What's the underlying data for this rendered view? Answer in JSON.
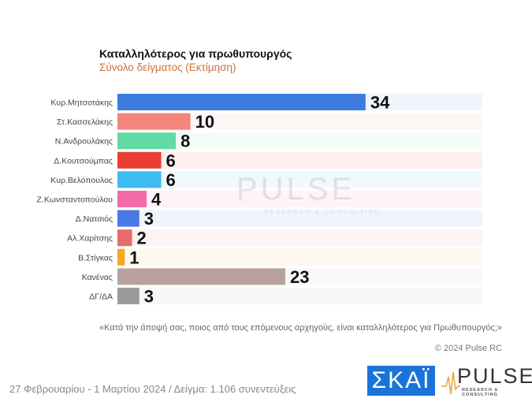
{
  "header": {
    "title": "Καταλληλότερος για πρωθυπουργός",
    "subtitle": "Σύνολο δείγματος   (Εκτίμηση)"
  },
  "chart_data": {
    "type": "bar",
    "orientation": "horizontal",
    "title": "Καταλληλότερος για πρωθυπουργός",
    "subtitle": "Σύνολο δείγματος   (Εκτίμηση)",
    "categories": [
      "Κυρ.Μητσοτάκης",
      "Στ.Κασσελάκης",
      "Ν.Ανδρουλάκης",
      "Δ.Κουτσούμπας",
      "Κυρ.Βελόπουλος",
      "Ζ.Κωνσταντοπούλου",
      "Δ.Νατσιός",
      "Αλ.Χαρίτσης",
      "Β.Στίγκας",
      "Κανένας",
      "ΔΓ/ΔΑ"
    ],
    "values": [
      34,
      10,
      8,
      6,
      6,
      4,
      3,
      2,
      1,
      23,
      3
    ],
    "colors": [
      "#3d7be0",
      "#f4857a",
      "#62dba3",
      "#ea3e35",
      "#3fbcef",
      "#f36ba6",
      "#4a78e6",
      "#e86c6c",
      "#f6a623",
      "#b9a29d",
      "#9a9a9a"
    ],
    "xlim": [
      0,
      50
    ],
    "grid": false,
    "data_labels": true
  },
  "watermark": {
    "text": "PULSE",
    "sub": "RESEARCH & CONSULTING"
  },
  "question": "«Κατά την άποψή σας, ποιος από τους επόμενους αρχηγούς, είναι καταλληλότερος για Πρωθυπουργός;»",
  "copyright": "© 2024 Pulse RC",
  "footer": "27 Φεβρουαρίου - 1 Μαρτίου 2024  /  Δείγμα:  1.106 συνεντεύξεις",
  "logos": {
    "skai": "ΣΚΑΪ",
    "pulse": "PULSE",
    "pulse_sub": "RESEARCH & CONSULTING"
  }
}
